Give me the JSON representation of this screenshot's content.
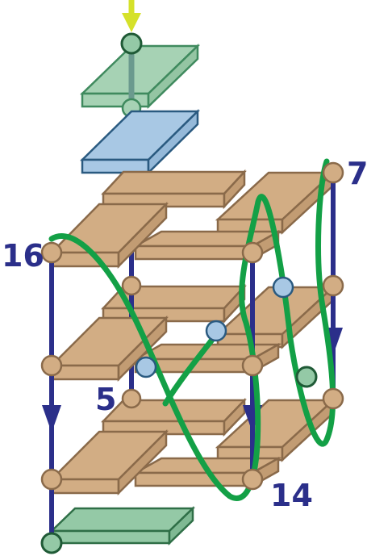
{
  "diagram": {
    "labels": {
      "n16": "16",
      "n7": "7",
      "n5": "5",
      "n14": "14"
    },
    "colors": {
      "plate_brown": "#d2ad84",
      "plate_brown_edge": "#8a6a4a",
      "plate_green": "#a6d2b4",
      "plate_green_edge": "#3f8a5e",
      "plate_blue": "#a8c8e4",
      "plate_blue_edge": "#2a5a80",
      "strand_blue": "#2b2f8a",
      "curve_green": "#13a046",
      "arrow_yellow": "#d5e12a",
      "label_color": "#2b2f8a"
    },
    "icons": {
      "input_arrow": "down-arrow-icon",
      "strand_arrows": "down-arrow-icon"
    }
  }
}
